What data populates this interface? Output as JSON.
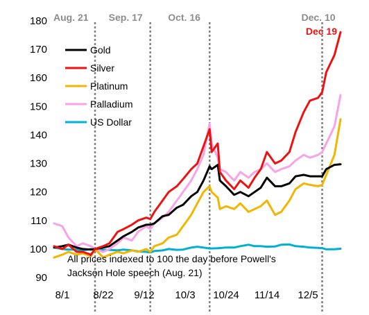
{
  "chart_data": {
    "type": "line",
    "x_ticks": [
      "8/1",
      "8/22",
      "9/12",
      "10/3",
      "10/24",
      "11/14",
      "12/5"
    ],
    "y_ticks": [
      90,
      100,
      110,
      120,
      130,
      140,
      150,
      160,
      170,
      180
    ],
    "ylim": [
      90,
      180
    ],
    "x_domain": [
      "2025-08-01",
      "2025-12-20"
    ],
    "grid": false,
    "legend_position": "upper-left",
    "annotation": "All prices indexed to 100 the day before Powell's Jackson Hole speech (Aug. 21)",
    "end_label": "Dec 19",
    "events": [
      {
        "date": "2025-08-21",
        "label": "Aug. 21"
      },
      {
        "date": "2025-09-17",
        "label": "Sep. 17"
      },
      {
        "date": "2025-10-16",
        "label": "Oct. 16"
      },
      {
        "date": "2025-12-10",
        "label": "Dec. 10"
      }
    ],
    "series": [
      {
        "name": "Gold",
        "color": "#000000",
        "points": [
          [
            "2025-08-01",
            100.5
          ],
          [
            "2025-08-05",
            101
          ],
          [
            "2025-08-08",
            101.5
          ],
          [
            "2025-08-12",
            100.5
          ],
          [
            "2025-08-15",
            100
          ],
          [
            "2025-08-19",
            99.8
          ],
          [
            "2025-08-21",
            100
          ],
          [
            "2025-08-25",
            100.5
          ],
          [
            "2025-08-28",
            101
          ],
          [
            "2025-09-01",
            103
          ],
          [
            "2025-09-04",
            104.5
          ],
          [
            "2025-09-08",
            106
          ],
          [
            "2025-09-11",
            107.5
          ],
          [
            "2025-09-15",
            108.5
          ],
          [
            "2025-09-17",
            108.5
          ],
          [
            "2025-09-19",
            109
          ],
          [
            "2025-09-23",
            111.5
          ],
          [
            "2025-09-26",
            112
          ],
          [
            "2025-09-30",
            114.5
          ],
          [
            "2025-10-03",
            115.5
          ],
          [
            "2025-10-07",
            118.5
          ],
          [
            "2025-10-10",
            120
          ],
          [
            "2025-10-13",
            124
          ],
          [
            "2025-10-16",
            129
          ],
          [
            "2025-10-17",
            128
          ],
          [
            "2025-10-20",
            129.5
          ],
          [
            "2025-10-21",
            124
          ],
          [
            "2025-10-24",
            122
          ],
          [
            "2025-10-28",
            119
          ],
          [
            "2025-10-31",
            120
          ],
          [
            "2025-11-04",
            118.5
          ],
          [
            "2025-11-07",
            120
          ],
          [
            "2025-11-10",
            121.5
          ],
          [
            "2025-11-13",
            125
          ],
          [
            "2025-11-17",
            122
          ],
          [
            "2025-11-20",
            122
          ],
          [
            "2025-11-24",
            123
          ],
          [
            "2025-11-27",
            125.5
          ],
          [
            "2025-12-01",
            126
          ],
          [
            "2025-12-04",
            125.5
          ],
          [
            "2025-12-08",
            125.5
          ],
          [
            "2025-12-10",
            125.5
          ],
          [
            "2025-12-12",
            128
          ],
          [
            "2025-12-16",
            129.5
          ],
          [
            "2025-12-19",
            129.7
          ]
        ]
      },
      {
        "name": "Silver",
        "color": "#ee1111",
        "points": [
          [
            "2025-08-01",
            101
          ],
          [
            "2025-08-05",
            100
          ],
          [
            "2025-08-08",
            101.5
          ],
          [
            "2025-08-12",
            99
          ],
          [
            "2025-08-15",
            99
          ],
          [
            "2025-08-19",
            98
          ],
          [
            "2025-08-21",
            100
          ],
          [
            "2025-08-25",
            101
          ],
          [
            "2025-08-28",
            102
          ],
          [
            "2025-09-01",
            106
          ],
          [
            "2025-09-04",
            107
          ],
          [
            "2025-09-08",
            108.5
          ],
          [
            "2025-09-11",
            110
          ],
          [
            "2025-09-15",
            111
          ],
          [
            "2025-09-17",
            110.5
          ],
          [
            "2025-09-19",
            113
          ],
          [
            "2025-09-23",
            117
          ],
          [
            "2025-09-26",
            120
          ],
          [
            "2025-09-30",
            122
          ],
          [
            "2025-10-03",
            124.5
          ],
          [
            "2025-10-07",
            128
          ],
          [
            "2025-10-10",
            130
          ],
          [
            "2025-10-13",
            136
          ],
          [
            "2025-10-16",
            142
          ],
          [
            "2025-10-17",
            134
          ],
          [
            "2025-10-20",
            137
          ],
          [
            "2025-10-21",
            127
          ],
          [
            "2025-10-24",
            124
          ],
          [
            "2025-10-28",
            121
          ],
          [
            "2025-10-31",
            124
          ],
          [
            "2025-11-04",
            121.5
          ],
          [
            "2025-11-07",
            125
          ],
          [
            "2025-11-10",
            128
          ],
          [
            "2025-11-13",
            134
          ],
          [
            "2025-11-17",
            130
          ],
          [
            "2025-11-20",
            131
          ],
          [
            "2025-11-24",
            134
          ],
          [
            "2025-11-27",
            141
          ],
          [
            "2025-12-01",
            148
          ],
          [
            "2025-12-04",
            152
          ],
          [
            "2025-12-08",
            153
          ],
          [
            "2025-12-10",
            155
          ],
          [
            "2025-12-12",
            162
          ],
          [
            "2025-12-16",
            168
          ],
          [
            "2025-12-19",
            176
          ]
        ]
      },
      {
        "name": "Platinum",
        "color": "#f2b600",
        "points": [
          [
            "2025-08-01",
            97
          ],
          [
            "2025-08-05",
            98
          ],
          [
            "2025-08-08",
            99
          ],
          [
            "2025-08-12",
            98
          ],
          [
            "2025-08-15",
            98.5
          ],
          [
            "2025-08-19",
            97.5
          ],
          [
            "2025-08-21",
            100
          ],
          [
            "2025-08-25",
            97
          ],
          [
            "2025-08-28",
            98
          ],
          [
            "2025-09-01",
            99
          ],
          [
            "2025-09-04",
            98.5
          ],
          [
            "2025-09-08",
            99.5
          ],
          [
            "2025-09-11",
            99
          ],
          [
            "2025-09-15",
            100
          ],
          [
            "2025-09-17",
            99
          ],
          [
            "2025-09-19",
            101
          ],
          [
            "2025-09-23",
            102
          ],
          [
            "2025-09-26",
            104
          ],
          [
            "2025-09-30",
            105
          ],
          [
            "2025-10-03",
            108
          ],
          [
            "2025-10-07",
            112
          ],
          [
            "2025-10-10",
            116
          ],
          [
            "2025-10-13",
            120
          ],
          [
            "2025-10-16",
            122
          ],
          [
            "2025-10-17",
            120
          ],
          [
            "2025-10-20",
            118
          ],
          [
            "2025-10-21",
            114
          ],
          [
            "2025-10-24",
            115
          ],
          [
            "2025-10-28",
            114
          ],
          [
            "2025-10-31",
            116
          ],
          [
            "2025-11-04",
            113
          ],
          [
            "2025-11-07",
            114
          ],
          [
            "2025-11-10",
            115
          ],
          [
            "2025-11-13",
            117
          ],
          [
            "2025-11-17",
            112
          ],
          [
            "2025-11-20",
            113
          ],
          [
            "2025-11-24",
            117
          ],
          [
            "2025-11-27",
            121
          ],
          [
            "2025-12-01",
            123
          ],
          [
            "2025-12-04",
            122.5
          ],
          [
            "2025-12-08",
            122
          ],
          [
            "2025-12-10",
            122.5
          ],
          [
            "2025-12-12",
            126
          ],
          [
            "2025-12-16",
            133
          ],
          [
            "2025-12-19",
            145.5
          ]
        ]
      },
      {
        "name": "Palladium",
        "color": "#f7a3e6",
        "points": [
          [
            "2025-08-01",
            109
          ],
          [
            "2025-08-05",
            108
          ],
          [
            "2025-08-08",
            104
          ],
          [
            "2025-08-12",
            101
          ],
          [
            "2025-08-15",
            102
          ],
          [
            "2025-08-19",
            101
          ],
          [
            "2025-08-21",
            100
          ],
          [
            "2025-08-25",
            99
          ],
          [
            "2025-08-28",
            100
          ],
          [
            "2025-09-01",
            102
          ],
          [
            "2025-09-04",
            104
          ],
          [
            "2025-09-08",
            103
          ],
          [
            "2025-09-11",
            106
          ],
          [
            "2025-09-15",
            108
          ],
          [
            "2025-09-17",
            107
          ],
          [
            "2025-09-19",
            109
          ],
          [
            "2025-09-23",
            111
          ],
          [
            "2025-09-26",
            113
          ],
          [
            "2025-09-30",
            117
          ],
          [
            "2025-10-03",
            120
          ],
          [
            "2025-10-07",
            124
          ],
          [
            "2025-10-10",
            128
          ],
          [
            "2025-10-13",
            133
          ],
          [
            "2025-10-16",
            144
          ],
          [
            "2025-10-17",
            137
          ],
          [
            "2025-10-20",
            132
          ],
          [
            "2025-10-21",
            128
          ],
          [
            "2025-10-24",
            127
          ],
          [
            "2025-10-28",
            124
          ],
          [
            "2025-10-31",
            127
          ],
          [
            "2025-11-04",
            125
          ],
          [
            "2025-11-07",
            127
          ],
          [
            "2025-11-10",
            128
          ],
          [
            "2025-11-13",
            130
          ],
          [
            "2025-11-17",
            127
          ],
          [
            "2025-11-20",
            128
          ],
          [
            "2025-11-24",
            129
          ],
          [
            "2025-11-27",
            131
          ],
          [
            "2025-12-01",
            133
          ],
          [
            "2025-12-04",
            132
          ],
          [
            "2025-12-08",
            133
          ],
          [
            "2025-12-10",
            134
          ],
          [
            "2025-12-12",
            137
          ],
          [
            "2025-12-16",
            143
          ],
          [
            "2025-12-19",
            154
          ]
        ]
      },
      {
        "name": "US Dollar",
        "color": "#00b0d0",
        "points": [
          [
            "2025-08-01",
            100.5
          ],
          [
            "2025-08-05",
            100
          ],
          [
            "2025-08-08",
            99.8
          ],
          [
            "2025-08-12",
            99.8
          ],
          [
            "2025-08-15",
            99.5
          ],
          [
            "2025-08-19",
            100
          ],
          [
            "2025-08-21",
            100
          ],
          [
            "2025-08-25",
            99.7
          ],
          [
            "2025-08-28",
            99.7
          ],
          [
            "2025-09-01",
            99.5
          ],
          [
            "2025-09-04",
            99.8
          ],
          [
            "2025-09-08",
            99.5
          ],
          [
            "2025-09-11",
            99.2
          ],
          [
            "2025-09-15",
            99.0
          ],
          [
            "2025-09-17",
            98.8
          ],
          [
            "2025-09-19",
            99.3
          ],
          [
            "2025-09-23",
            99.5
          ],
          [
            "2025-09-26",
            100
          ],
          [
            "2025-09-30",
            99.7
          ],
          [
            "2025-10-03",
            99.8
          ],
          [
            "2025-10-07",
            100.5
          ],
          [
            "2025-10-10",
            100.8
          ],
          [
            "2025-10-13",
            100.5
          ],
          [
            "2025-10-16",
            100.2
          ],
          [
            "2025-10-20",
            100.3
          ],
          [
            "2025-10-24",
            100.5
          ],
          [
            "2025-10-28",
            100.5
          ],
          [
            "2025-10-31",
            101
          ],
          [
            "2025-11-04",
            101.5
          ],
          [
            "2025-11-07",
            101
          ],
          [
            "2025-11-10",
            101
          ],
          [
            "2025-11-13",
            100.8
          ],
          [
            "2025-11-17",
            100.9
          ],
          [
            "2025-11-20",
            101.5
          ],
          [
            "2025-11-24",
            101.6
          ],
          [
            "2025-11-27",
            101
          ],
          [
            "2025-12-01",
            100.8
          ],
          [
            "2025-12-04",
            100.5
          ],
          [
            "2025-12-08",
            100.4
          ],
          [
            "2025-12-10",
            100.3
          ],
          [
            "2025-12-12",
            99.9
          ],
          [
            "2025-12-16",
            99.9
          ],
          [
            "2025-12-19",
            100.1
          ]
        ]
      }
    ]
  }
}
